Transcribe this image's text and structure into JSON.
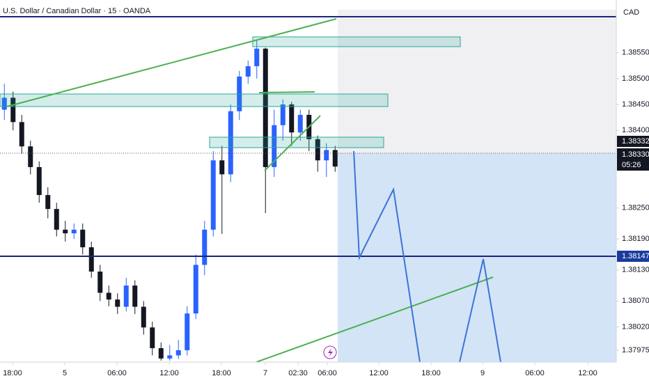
{
  "header": {
    "symbol": "U.S. Dollar / Canadian Dollar · 15 · OANDA",
    "currency": "CAD"
  },
  "price_labels": {
    "last": "1.38332",
    "current": "1.38330",
    "countdown": "05:26",
    "level": "1.38147"
  },
  "chart_data": {
    "type": "candlestick",
    "up_color": "#2962ff",
    "down_color": "#131722",
    "xlim": [
      0,
      70.8
    ],
    "ylim": [
      1.37952,
      1.38652
    ],
    "xticks": [
      {
        "value": 1.44,
        "label": "18:00"
      },
      {
        "value": 7.44,
        "label": "5"
      },
      {
        "value": 13.44,
        "label": "06:00"
      },
      {
        "value": 19.44,
        "label": "12:00"
      },
      {
        "value": 25.44,
        "label": "18:00"
      },
      {
        "value": 30.48,
        "label": "7"
      },
      {
        "value": 34.24,
        "label": "02:30"
      },
      {
        "value": 37.6,
        "label": "06:00"
      },
      {
        "value": 43.52,
        "label": "12:00"
      },
      {
        "value": 49.52,
        "label": "18:00"
      },
      {
        "value": 55.44,
        "label": "9"
      },
      {
        "value": 61.44,
        "label": "06:00"
      },
      {
        "value": 67.52,
        "label": "12:00"
      }
    ],
    "yticks": [
      {
        "value": 1.3855,
        "label": "1.38550"
      },
      {
        "value": 1.385,
        "label": "1.38500"
      },
      {
        "value": 1.3845,
        "label": "1.38450"
      },
      {
        "value": 1.384,
        "label": "1.38400"
      },
      {
        "value": 1.3825,
        "label": "1.38250"
      },
      {
        "value": 1.3819,
        "label": "1.38190"
      },
      {
        "value": 1.3813,
        "label": "1.38130"
      },
      {
        "value": 1.3807,
        "label": "1.38070"
      },
      {
        "value": 1.3802,
        "label": "1.38020"
      },
      {
        "value": 1.37975,
        "label": "1.37975"
      }
    ],
    "x": [
      0.5,
      1.5,
      2.5,
      3.5,
      4.5,
      5.5,
      6.5,
      7.5,
      8.5,
      9.5,
      10.5,
      11.5,
      12.5,
      13.5,
      14.5,
      15.5,
      16.5,
      17.5,
      18.5,
      19.5,
      20.5,
      21.5,
      22.5,
      23.5,
      24.5,
      25.5,
      26.5,
      27.5,
      28.5,
      29.5,
      30.5,
      31.5,
      32.5,
      33.5,
      34.5,
      35.5,
      36.5,
      37.5,
      38.5
    ],
    "open": [
      1.3844,
      1.38463,
      1.38416,
      1.38369,
      1.38329,
      1.38275,
      1.38248,
      1.38208,
      1.38201,
      1.38208,
      1.38174,
      1.38127,
      1.38086,
      1.38073,
      1.38059,
      1.381,
      1.38059,
      1.38019,
      1.37979,
      1.37959,
      1.37965,
      1.37975,
      1.38046,
      1.3814,
      1.38208,
      1.38342,
      1.38315,
      1.38437,
      1.38504,
      1.38524,
      1.38558,
      1.38329,
      1.3841,
      1.3845,
      1.38396,
      1.3843,
      1.38383,
      1.38342,
      1.38362
    ],
    "high": [
      1.3849,
      1.38475,
      1.3843,
      1.3838,
      1.3834,
      1.3829,
      1.3826,
      1.38225,
      1.3822,
      1.3822,
      1.38185,
      1.3814,
      1.381,
      1.38085,
      1.38115,
      1.3811,
      1.3807,
      1.3803,
      1.3799,
      1.37985,
      1.37995,
      1.3806,
      1.3816,
      1.38225,
      1.3836,
      1.3837,
      1.3845,
      1.38515,
      1.38535,
      1.38575,
      1.3856,
      1.3844,
      1.3846,
      1.38455,
      1.3844,
      1.3844,
      1.3839,
      1.38375,
      1.3837
    ],
    "low": [
      1.3842,
      1.384,
      1.38355,
      1.38315,
      1.3826,
      1.3823,
      1.38195,
      1.38185,
      1.3819,
      1.3816,
      1.38115,
      1.3807,
      1.3806,
      1.38045,
      1.3805,
      1.38045,
      1.38005,
      1.37965,
      1.37955,
      1.37955,
      1.37958,
      1.37965,
      1.38035,
      1.3812,
      1.38195,
      1.382,
      1.383,
      1.3842,
      1.3849,
      1.385,
      1.3824,
      1.3831,
      1.3838,
      1.3837,
      1.3838,
      1.3836,
      1.3832,
      1.3831,
      1.3832
    ],
    "close": [
      1.38463,
      1.38416,
      1.38369,
      1.38329,
      1.38275,
      1.38248,
      1.38208,
      1.38201,
      1.38208,
      1.38174,
      1.38127,
      1.38086,
      1.38073,
      1.38059,
      1.381,
      1.38059,
      1.38019,
      1.37979,
      1.37959,
      1.37965,
      1.37975,
      1.38046,
      1.3814,
      1.38208,
      1.38342,
      1.38315,
      1.38437,
      1.38504,
      1.38524,
      1.38558,
      1.38329,
      1.3841,
      1.3845,
      1.38396,
      1.3843,
      1.38383,
      1.38342,
      1.38362,
      1.3833
    ]
  }
}
